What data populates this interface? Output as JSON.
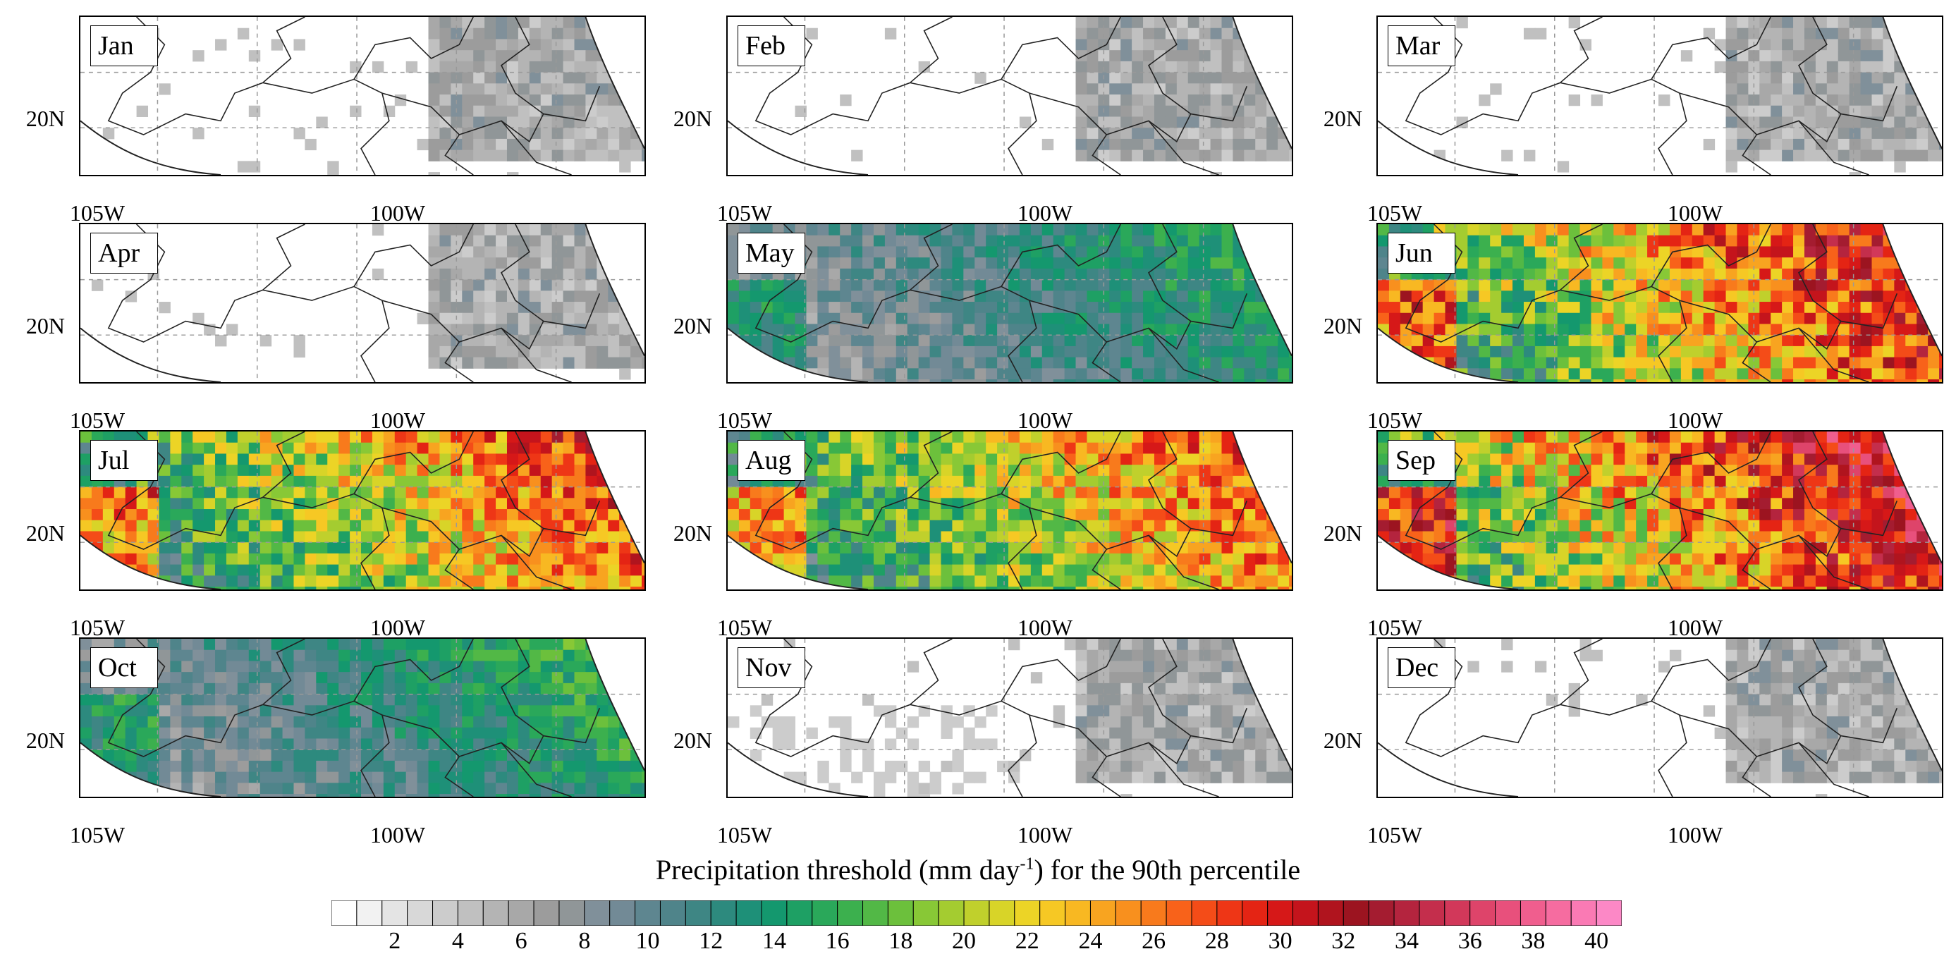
{
  "panels": [
    {
      "month": "Jan",
      "intensity": 0.15,
      "lat_label": "20N",
      "lon_labels": [
        "105W",
        "100W"
      ]
    },
    {
      "month": "Feb",
      "intensity": 0.18,
      "lat_label": "20N",
      "lon_labels": [
        "105W",
        "100W"
      ]
    },
    {
      "month": "Mar",
      "intensity": 0.2,
      "lat_label": "20N",
      "lon_labels": [
        "105W",
        "100W"
      ]
    },
    {
      "month": "Apr",
      "intensity": 0.25,
      "lat_label": "20N",
      "lon_labels": [
        "105W",
        "100W"
      ]
    },
    {
      "month": "May",
      "intensity": 0.38,
      "lat_label": "20N",
      "lon_labels": [
        "105W",
        "100W"
      ]
    },
    {
      "month": "Jun",
      "intensity": 0.78,
      "lat_label": "20N",
      "lon_labels": [
        "105W",
        "100W"
      ]
    },
    {
      "month": "Jul",
      "intensity": 0.72,
      "lat_label": "20N",
      "lon_labels": [
        "105W",
        "100W"
      ]
    },
    {
      "month": "Aug",
      "intensity": 0.7,
      "lat_label": "20N",
      "lon_labels": [
        "105W",
        "100W"
      ]
    },
    {
      "month": "Sep",
      "intensity": 0.85,
      "lat_label": "20N",
      "lon_labels": [
        "105W",
        "100W"
      ]
    },
    {
      "month": "Oct",
      "intensity": 0.4,
      "lat_label": "20N",
      "lon_labels": [
        "105W",
        "100W"
      ]
    },
    {
      "month": "Nov",
      "intensity": 0.18,
      "lat_label": "20N",
      "lon_labels": [
        "105W",
        "100W"
      ]
    },
    {
      "month": "Dec",
      "intensity": 0.12,
      "lat_label": "20N",
      "lon_labels": [
        "105W",
        "100W"
      ]
    }
  ],
  "colorbar": {
    "title_pre": "Precipitation threshold (mm day",
    "title_sup": "-1",
    "title_post": ") for the 90th percentile",
    "ticks": [
      "2",
      "4",
      "6",
      "8",
      "10",
      "12",
      "14",
      "16",
      "18",
      "20",
      "22",
      "24",
      "26",
      "28",
      "30",
      "32",
      "34",
      "36",
      "38",
      "40"
    ],
    "colors": [
      "#ffffff",
      "#f2f2f2",
      "#e4e4e4",
      "#d8d8d8",
      "#cccccc",
      "#c0c0c0",
      "#b4b4b4",
      "#a8a8a8",
      "#9c9c9c",
      "#909698",
      "#80909a",
      "#728a96",
      "#5e8690",
      "#4f848a",
      "#3e8684",
      "#2d8a7e",
      "#1e9078",
      "#14986e",
      "#1ea064",
      "#2aa85a",
      "#3cb04e",
      "#52b846",
      "#6cc03c",
      "#88c836",
      "#a4cc30",
      "#c0d02c",
      "#d8d428",
      "#ecd426",
      "#f6c824",
      "#f8b822",
      "#f8a420",
      "#f8901e",
      "#f87a1c",
      "#f8621a",
      "#f44c18",
      "#ee3616",
      "#e42414",
      "#d61818",
      "#c4141c",
      "#b0141e",
      "#9c1420",
      "#a41c30",
      "#b4243e",
      "#c42e4c",
      "#d2385a",
      "#de446a",
      "#e8507c",
      "#f05e8e",
      "#f66ca0",
      "#fa7ab4",
      "#fc88c6"
    ]
  }
}
